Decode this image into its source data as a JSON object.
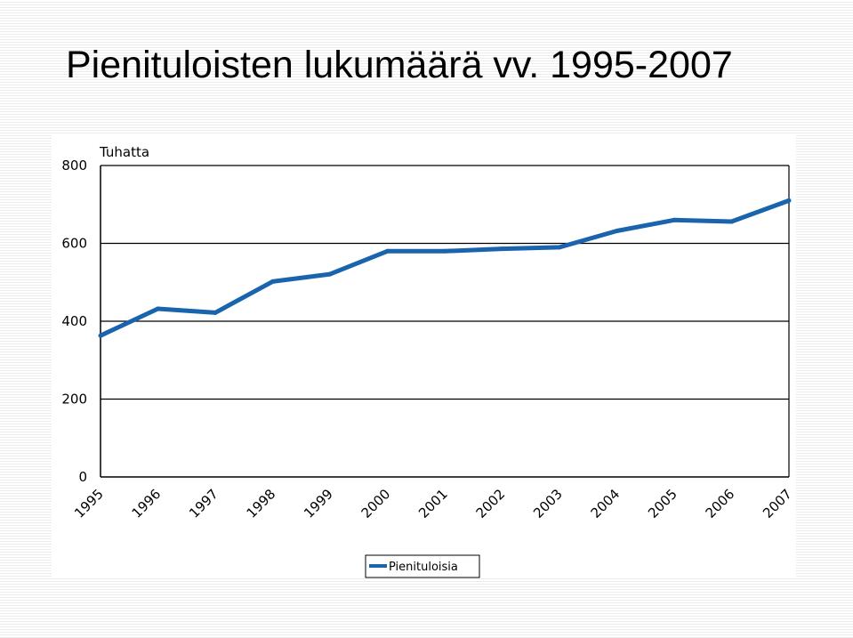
{
  "title": "Pienituloisten lukumäärä vv. 1995-2007",
  "chart_data": {
    "type": "line",
    "title": "",
    "xlabel": "",
    "ylabel": "Tuhatta",
    "categories": [
      "1995",
      "1996",
      "1997",
      "1998",
      "1999",
      "2000",
      "2001",
      "2002",
      "2003",
      "2004",
      "2005",
      "2006",
      "2007"
    ],
    "series": [
      {
        "name": "Pienituloisia",
        "values": [
          363,
          432,
          422,
          502,
          521,
          580,
          580,
          586,
          590,
          632,
          660,
          656,
          710
        ],
        "color": "#1a64ad"
      }
    ],
    "ylim": [
      0,
      800
    ],
    "yticks": [
      "0",
      "200",
      "400",
      "600",
      "800"
    ],
    "grid": true,
    "legend": "bottom-center"
  }
}
